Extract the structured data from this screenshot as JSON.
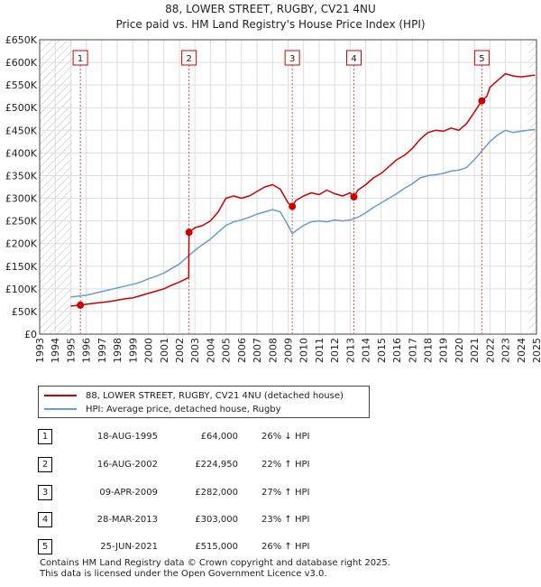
{
  "chart_data": {
    "type": "line",
    "title": "88, LOWER STREET, RUGBY, CV21 4NU",
    "subtitle": "Price paid vs. HM Land Registry's House Price Index (HPI)",
    "xlabel": "",
    "ylabel": "",
    "xlim": [
      1993,
      2025
    ],
    "ylim": [
      0,
      650000
    ],
    "grid": true,
    "hatched_ranges": [
      [
        1993,
        1995.1
      ],
      [
        2024.5,
        2025
      ]
    ],
    "y_ticks": [
      {
        "value": 0,
        "label": "£0"
      },
      {
        "value": 50000,
        "label": "£50K"
      },
      {
        "value": 100000,
        "label": "£100K"
      },
      {
        "value": 150000,
        "label": "£150K"
      },
      {
        "value": 200000,
        "label": "£200K"
      },
      {
        "value": 250000,
        "label": "£250K"
      },
      {
        "value": 300000,
        "label": "£300K"
      },
      {
        "value": 350000,
        "label": "£350K"
      },
      {
        "value": 400000,
        "label": "£400K"
      },
      {
        "value": 450000,
        "label": "£450K"
      },
      {
        "value": 500000,
        "label": "£500K"
      },
      {
        "value": 550000,
        "label": "£550K"
      },
      {
        "value": 600000,
        "label": "£600K"
      },
      {
        "value": 650000,
        "label": "£650K"
      }
    ],
    "x_ticks": [
      "1993",
      "1994",
      "1995",
      "1996",
      "1997",
      "1998",
      "1999",
      "2000",
      "2001",
      "2002",
      "2003",
      "2004",
      "2005",
      "2006",
      "2007",
      "2008",
      "2009",
      "2010",
      "2011",
      "2012",
      "2013",
      "2014",
      "2015",
      "2016",
      "2017",
      "2018",
      "2019",
      "2020",
      "2021",
      "2022",
      "2023",
      "2024",
      "2025"
    ],
    "series": [
      {
        "name": "88, LOWER STREET, RUGBY, CV21 4NU (detached house)",
        "color": "#cc0000",
        "x": [
          1995.0,
          1995.62,
          1996.0,
          1996.5,
          1997.0,
          1997.5,
          1998.0,
          1998.5,
          1999.0,
          1999.5,
          2000.0,
          2000.5,
          2001.0,
          2001.5,
          2002.0,
          2002.6,
          2002.62,
          2003.0,
          2003.5,
          2004.0,
          2004.5,
          2005.0,
          2005.5,
          2006.0,
          2006.5,
          2007.0,
          2007.5,
          2008.0,
          2008.5,
          2009.0,
          2009.27,
          2009.5,
          2010.0,
          2010.5,
          2011.0,
          2011.5,
          2012.0,
          2012.5,
          2013.0,
          2013.24,
          2013.5,
          2014.0,
          2014.5,
          2015.0,
          2015.5,
          2016.0,
          2016.5,
          2017.0,
          2017.5,
          2018.0,
          2018.5,
          2019.0,
          2019.5,
          2020.0,
          2020.5,
          2021.0,
          2021.48,
          2021.8,
          2022.0,
          2022.5,
          2023.0,
          2023.5,
          2024.0,
          2024.5,
          2024.9
        ],
        "values": [
          62000,
          64000,
          66000,
          68000,
          70000,
          72000,
          75000,
          78000,
          80000,
          85000,
          90000,
          95000,
          100000,
          108000,
          115000,
          125000,
          224950,
          235000,
          240000,
          250000,
          270000,
          300000,
          305000,
          300000,
          305000,
          315000,
          325000,
          330000,
          320000,
          290000,
          282000,
          295000,
          305000,
          312000,
          308000,
          318000,
          310000,
          305000,
          312000,
          303000,
          318000,
          330000,
          345000,
          355000,
          370000,
          385000,
          395000,
          410000,
          430000,
          445000,
          450000,
          448000,
          455000,
          450000,
          465000,
          490000,
          515000,
          525000,
          545000,
          560000,
          575000,
          570000,
          568000,
          570000,
          572000
        ]
      },
      {
        "name": "HPI: Average price, detached house, Rugby",
        "color": "#6a9bd1",
        "x": [
          1995.0,
          1995.5,
          1996.0,
          1996.5,
          1997.0,
          1997.5,
          1998.0,
          1998.5,
          1999.0,
          1999.5,
          2000.0,
          2000.5,
          2001.0,
          2001.5,
          2002.0,
          2002.5,
          2003.0,
          2003.5,
          2004.0,
          2004.5,
          2005.0,
          2005.5,
          2006.0,
          2006.5,
          2007.0,
          2007.5,
          2008.0,
          2008.5,
          2009.0,
          2009.27,
          2009.5,
          2010.0,
          2010.5,
          2011.0,
          2011.5,
          2012.0,
          2012.5,
          2013.0,
          2013.5,
          2014.0,
          2014.5,
          2015.0,
          2015.5,
          2016.0,
          2016.5,
          2017.0,
          2017.5,
          2018.0,
          2018.5,
          2019.0,
          2019.5,
          2020.0,
          2020.5,
          2021.0,
          2021.5,
          2022.0,
          2022.5,
          2023.0,
          2023.5,
          2024.0,
          2024.5,
          2024.9
        ],
        "values": [
          82000,
          84000,
          86000,
          90000,
          94000,
          98000,
          102000,
          106000,
          110000,
          115000,
          122000,
          128000,
          135000,
          145000,
          155000,
          170000,
          185000,
          198000,
          210000,
          225000,
          240000,
          248000,
          252000,
          258000,
          265000,
          270000,
          275000,
          270000,
          240000,
          222000,
          228000,
          240000,
          248000,
          250000,
          248000,
          252000,
          250000,
          252000,
          258000,
          268000,
          280000,
          290000,
          300000,
          310000,
          322000,
          332000,
          345000,
          350000,
          352000,
          355000,
          360000,
          362000,
          368000,
          385000,
          405000,
          425000,
          440000,
          450000,
          445000,
          448000,
          450000,
          452000
        ]
      }
    ],
    "sales": [
      {
        "num": "1",
        "x": 1995.62,
        "value": 64000
      },
      {
        "num": "2",
        "x": 2002.62,
        "value": 224950
      },
      {
        "num": "3",
        "x": 2009.27,
        "value": 282000
      },
      {
        "num": "4",
        "x": 2013.24,
        "value": 303000
      },
      {
        "num": "5",
        "x": 2021.48,
        "value": 515000
      }
    ]
  },
  "title": "88, LOWER STREET, RUGBY, CV21 4NU",
  "subtitle": "Price paid vs. HM Land Registry's House Price Index (HPI)",
  "legend": {
    "property_label": "88, LOWER STREET, RUGBY, CV21 4NU (detached house)",
    "property_color": "#cc0000",
    "hpi_label": "HPI: Average price, detached house, Rugby",
    "hpi_color": "#6a9bd1"
  },
  "sales_table": [
    {
      "num": "1",
      "date": "18-AUG-1995",
      "price": "£64,000",
      "hpi": "26% ↓ HPI"
    },
    {
      "num": "2",
      "date": "16-AUG-2002",
      "price": "£224,950",
      "hpi": "22% ↑ HPI"
    },
    {
      "num": "3",
      "date": "09-APR-2009",
      "price": "£282,000",
      "hpi": "27% ↑ HPI"
    },
    {
      "num": "4",
      "date": "28-MAR-2013",
      "price": "£303,000",
      "hpi": "23% ↑ HPI"
    },
    {
      "num": "5",
      "date": "25-JUN-2021",
      "price": "£515,000",
      "hpi": "26% ↑ HPI"
    }
  ],
  "footer": {
    "line1": "Contains HM Land Registry data © Crown copyright and database right 2025.",
    "line2": "This data is licensed under the Open Government Licence v3.0."
  }
}
